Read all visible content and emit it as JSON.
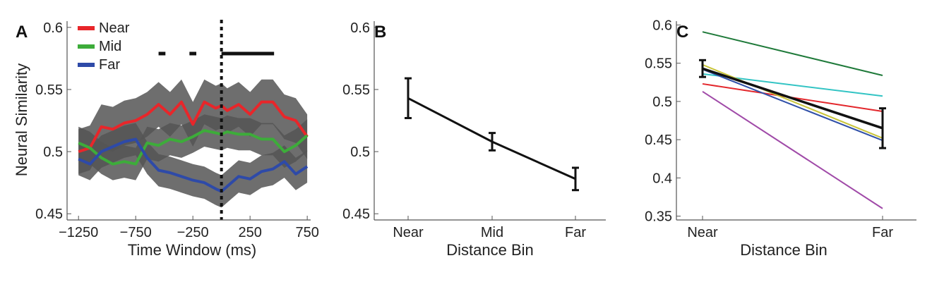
{
  "chart_data": [
    {
      "panel": "A",
      "type": "line",
      "xlabel": "Time Window (ms)",
      "ylabel": "Neural Similarity",
      "xlim": [
        -1350,
        780
      ],
      "ylim": [
        0.445,
        0.605
      ],
      "xticks": [
        -1250,
        -750,
        -250,
        250,
        750
      ],
      "xtick_labels": [
        "−1250",
        "−750",
        "−250",
        "250",
        "750"
      ],
      "yticks": [
        0.45,
        0.5,
        0.55,
        0.6
      ],
      "ytick_labels": [
        "0.45",
        "0.5",
        "0.55",
        "0.6"
      ],
      "legend_position": "top-left",
      "x": [
        -1250,
        -1150,
        -1050,
        -950,
        -850,
        -750,
        -650,
        -550,
        -450,
        -350,
        -250,
        -150,
        -50,
        0,
        50,
        150,
        250,
        350,
        450,
        550,
        650,
        750
      ],
      "series": [
        {
          "name": "Near",
          "color": "#e8262a",
          "values": [
            0.5,
            0.503,
            0.52,
            0.518,
            0.523,
            0.525,
            0.53,
            0.538,
            0.53,
            0.54,
            0.522,
            0.54,
            0.535,
            0.537,
            0.533,
            0.538,
            0.53,
            0.54,
            0.54,
            0.528,
            0.525,
            0.512
          ],
          "band": 0.018
        },
        {
          "name": "Mid",
          "color": "#3dac3a",
          "values": [
            0.507,
            0.503,
            0.495,
            0.49,
            0.492,
            0.49,
            0.507,
            0.505,
            0.51,
            0.508,
            0.512,
            0.517,
            0.515,
            0.514,
            0.516,
            0.514,
            0.514,
            0.51,
            0.51,
            0.5,
            0.505,
            0.513
          ],
          "band": 0.013
        },
        {
          "name": "Far",
          "color": "#2e4aa8",
          "values": [
            0.494,
            0.49,
            0.5,
            0.504,
            0.508,
            0.51,
            0.495,
            0.485,
            0.483,
            0.48,
            0.477,
            0.475,
            0.47,
            0.468,
            0.472,
            0.48,
            0.478,
            0.484,
            0.486,
            0.492,
            0.482,
            0.488
          ],
          "band": 0.013
        }
      ],
      "significance_bars": [
        [
          -550,
          -490
        ],
        [
          -280,
          -220
        ],
        [
          0,
          460
        ]
      ],
      "event_line_x": 0
    },
    {
      "panel": "B",
      "type": "line",
      "xlabel": "Distance Bin",
      "ylabel": "",
      "categories": [
        "Near",
        "Mid",
        "Far"
      ],
      "ylim": [
        0.445,
        0.605
      ],
      "yticks": [
        0.45,
        0.5,
        0.55,
        0.6
      ],
      "ytick_labels": [
        "0.45",
        "0.5",
        "0.55",
        "0.6"
      ],
      "values": [
        0.543,
        0.508,
        0.478
      ],
      "error": [
        0.016,
        0.007,
        0.009
      ]
    },
    {
      "panel": "C",
      "type": "line",
      "xlabel": "Distance Bin",
      "ylabel": "",
      "categories": [
        "Near",
        "Far"
      ],
      "ylim": [
        0.345,
        0.605
      ],
      "yticks": [
        0.35,
        0.4,
        0.45,
        0.5,
        0.55,
        0.6
      ],
      "ytick_labels": [
        "0.35",
        "0.4",
        "0.45",
        "0.5",
        "0.55",
        "0.6"
      ],
      "lines": [
        {
          "color": "#1f7a3a",
          "values": [
            0.591,
            0.534
          ]
        },
        {
          "color": "#33c4c4",
          "values": [
            0.536,
            0.507
          ]
        },
        {
          "color": "#e3272c",
          "values": [
            0.523,
            0.487
          ]
        },
        {
          "color": "#c8c43a",
          "values": [
            0.548,
            0.452
          ]
        },
        {
          "color": "#3050a8",
          "values": [
            0.542,
            0.449
          ]
        },
        {
          "color": "#a04aa8",
          "values": [
            0.513,
            0.36
          ]
        }
      ],
      "mean": {
        "color": "#111111",
        "values": [
          0.543,
          0.465
        ],
        "error": [
          0.011,
          0.026
        ]
      }
    }
  ]
}
